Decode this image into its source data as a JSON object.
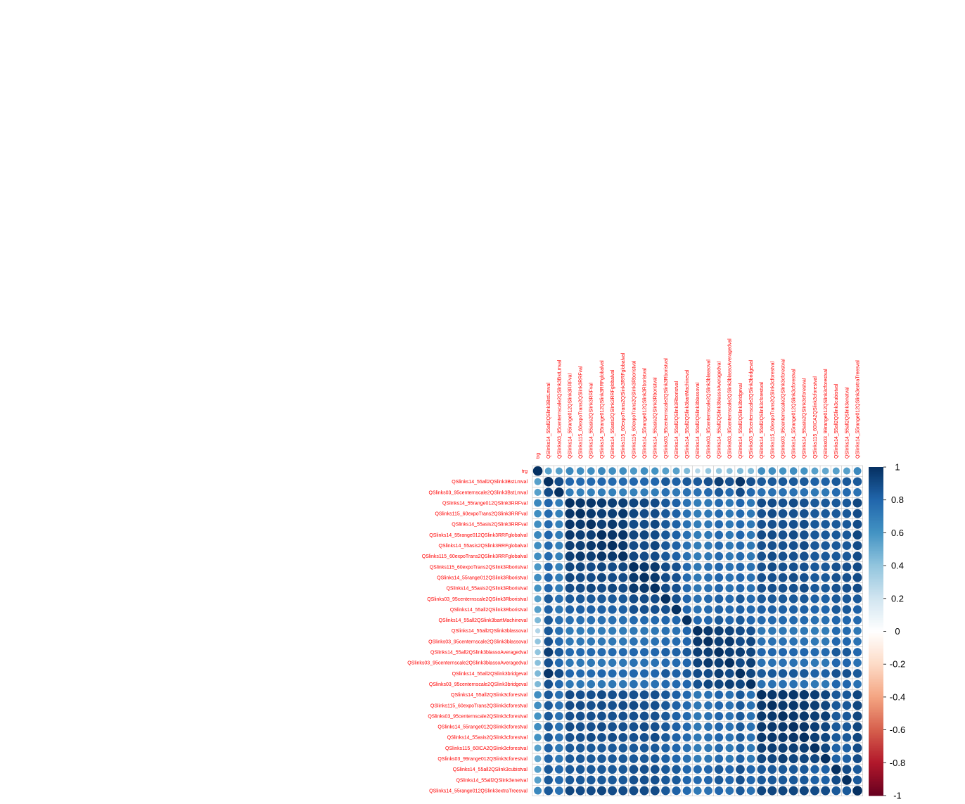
{
  "chart_data": {
    "type": "heatmap",
    "variables": [
      "trg",
      "QSlinks14_55all2QSlink3BstLmval",
      "QSlinks03_95centernscale2QSlink3BstLmval",
      "QSlinks14_55range012QSlink3RRFval",
      "QSlinks115_60expoTrans2QSlink3RRFval",
      "QSlinks14_55asis2QSlink3RRFval",
      "QSlinks14_55range012QSlink3RRFglobalval",
      "QSlinks14_55asis2QSlink3RRFglobalval",
      "QSlinks115_60expoTrans2QSlink3RRFglobalval",
      "QSlinks115_60expoTrans2QSlink3Rboristval",
      "QSlinks14_55range012QSlink3Rboristval",
      "QSlinks14_55asis2QSlink3Rboristval",
      "QSlinks03_95centernscale2QSlink3Rboristval",
      "QSlinks14_55all2QSlink3Rboristval",
      "QSlinks14_55all2QSlink3bartMachineval",
      "QSlinks14_55all2QSlink3blassoval",
      "QSlinks03_95centernscale2QSlink3blassoval",
      "QSlinks14_55all2QSlink3blassoAveragedval",
      "QSlinks03_95centernscale2QSlink3blassoAveragedval",
      "QSlinks14_55all2QSlink3bridgeval",
      "QSlinks03_95centernscale2QSlink3bridgeval",
      "QSlinks14_55all2QSlink3cforestval",
      "QSlinks115_60expoTrans2QSlink3cforestval",
      "QSlinks03_95centernscale2QSlink3cforestval",
      "QSlinks14_55range012QSlink3cforestval",
      "QSlinks14_55asis2QSlink3cforestval",
      "QSlinks115_60ICA2QSlink3cforestval",
      "QSlinks03_99range012QSlink3cforestval",
      "QSlinks14_55all2QSlink3cubistval",
      "QSlinks14_55all2QSlink3enetval",
      "QSlinks14_55range012QSlink3extraTreesval"
    ],
    "groups": [
      0,
      1,
      1,
      2,
      2,
      2,
      2,
      2,
      2,
      2,
      2,
      2,
      1,
      1,
      1,
      3,
      3,
      3,
      3,
      3,
      3,
      4,
      4,
      4,
      4,
      4,
      4,
      4,
      1,
      1,
      4
    ],
    "values": [
      [
        1.0,
        0.55,
        0.55,
        0.65,
        0.62,
        0.62,
        0.65,
        0.62,
        0.62,
        0.58,
        0.62,
        0.6,
        0.55,
        0.55,
        0.45,
        0.3,
        0.4,
        0.4,
        0.42,
        0.45,
        0.45,
        0.62,
        0.62,
        0.6,
        0.62,
        0.6,
        0.55,
        0.52,
        0.55,
        0.55,
        0.65
      ],
      [
        0.55,
        1.0,
        0.9,
        0.8,
        0.78,
        0.78,
        0.8,
        0.78,
        0.78,
        0.8,
        0.8,
        0.8,
        0.85,
        0.82,
        0.85,
        0.85,
        0.88,
        0.95,
        0.88,
        0.98,
        0.88,
        0.85,
        0.85,
        0.85,
        0.85,
        0.85,
        0.82,
        0.82,
        0.85,
        0.85,
        0.85
      ],
      [
        0.55,
        0.9,
        1.0,
        0.7,
        0.68,
        0.68,
        0.7,
        0.68,
        0.68,
        0.68,
        0.7,
        0.7,
        0.75,
        0.72,
        0.75,
        0.75,
        0.78,
        0.85,
        0.78,
        0.9,
        0.78,
        0.75,
        0.75,
        0.75,
        0.75,
        0.75,
        0.72,
        0.72,
        0.78,
        0.78,
        0.75
      ],
      [
        0.65,
        0.8,
        0.7,
        1.0,
        0.98,
        0.98,
        0.97,
        0.95,
        0.95,
        0.92,
        0.92,
        0.9,
        0.85,
        0.82,
        0.75,
        0.7,
        0.72,
        0.78,
        0.72,
        0.8,
        0.72,
        0.9,
        0.9,
        0.88,
        0.9,
        0.88,
        0.85,
        0.85,
        0.85,
        0.85,
        0.92
      ],
      [
        0.62,
        0.78,
        0.68,
        0.98,
        1.0,
        0.97,
        0.95,
        0.95,
        0.97,
        0.92,
        0.9,
        0.9,
        0.85,
        0.82,
        0.75,
        0.7,
        0.72,
        0.78,
        0.72,
        0.78,
        0.72,
        0.88,
        0.9,
        0.88,
        0.88,
        0.88,
        0.85,
        0.85,
        0.85,
        0.85,
        0.9
      ],
      [
        0.62,
        0.78,
        0.68,
        0.98,
        0.97,
        1.0,
        0.95,
        0.97,
        0.95,
        0.9,
        0.9,
        0.92,
        0.85,
        0.82,
        0.75,
        0.7,
        0.72,
        0.78,
        0.72,
        0.78,
        0.72,
        0.88,
        0.88,
        0.88,
        0.88,
        0.9,
        0.85,
        0.85,
        0.85,
        0.85,
        0.9
      ],
      [
        0.65,
        0.8,
        0.7,
        0.97,
        0.95,
        0.95,
        1.0,
        0.98,
        0.98,
        0.92,
        0.92,
        0.9,
        0.85,
        0.82,
        0.75,
        0.7,
        0.72,
        0.78,
        0.72,
        0.8,
        0.72,
        0.9,
        0.9,
        0.88,
        0.9,
        0.88,
        0.85,
        0.85,
        0.85,
        0.85,
        0.92
      ],
      [
        0.62,
        0.78,
        0.68,
        0.95,
        0.95,
        0.97,
        0.98,
        1.0,
        0.97,
        0.9,
        0.9,
        0.92,
        0.85,
        0.82,
        0.75,
        0.7,
        0.72,
        0.78,
        0.72,
        0.78,
        0.72,
        0.88,
        0.88,
        0.88,
        0.88,
        0.9,
        0.85,
        0.85,
        0.85,
        0.85,
        0.9
      ],
      [
        0.62,
        0.78,
        0.68,
        0.95,
        0.97,
        0.95,
        0.98,
        0.97,
        1.0,
        0.92,
        0.9,
        0.9,
        0.85,
        0.82,
        0.75,
        0.7,
        0.72,
        0.78,
        0.72,
        0.78,
        0.72,
        0.88,
        0.9,
        0.88,
        0.88,
        0.88,
        0.85,
        0.85,
        0.85,
        0.85,
        0.9
      ],
      [
        0.58,
        0.8,
        0.68,
        0.92,
        0.92,
        0.9,
        0.92,
        0.9,
        0.92,
        1.0,
        0.97,
        0.97,
        0.9,
        0.88,
        0.78,
        0.72,
        0.75,
        0.8,
        0.75,
        0.8,
        0.75,
        0.88,
        0.9,
        0.88,
        0.88,
        0.88,
        0.85,
        0.85,
        0.88,
        0.88,
        0.9
      ],
      [
        0.62,
        0.8,
        0.7,
        0.92,
        0.9,
        0.9,
        0.92,
        0.9,
        0.9,
        0.97,
        1.0,
        0.97,
        0.9,
        0.88,
        0.78,
        0.72,
        0.75,
        0.8,
        0.75,
        0.8,
        0.75,
        0.88,
        0.88,
        0.88,
        0.9,
        0.88,
        0.85,
        0.85,
        0.88,
        0.88,
        0.9
      ],
      [
        0.6,
        0.8,
        0.7,
        0.9,
        0.9,
        0.92,
        0.9,
        0.92,
        0.9,
        0.97,
        0.97,
        1.0,
        0.9,
        0.88,
        0.78,
        0.72,
        0.75,
        0.8,
        0.75,
        0.8,
        0.75,
        0.88,
        0.88,
        0.88,
        0.88,
        0.9,
        0.85,
        0.85,
        0.88,
        0.88,
        0.9
      ],
      [
        0.55,
        0.85,
        0.75,
        0.85,
        0.85,
        0.85,
        0.85,
        0.85,
        0.85,
        0.9,
        0.9,
        0.9,
        1.0,
        0.88,
        0.8,
        0.75,
        0.78,
        0.82,
        0.78,
        0.85,
        0.78,
        0.85,
        0.85,
        0.85,
        0.85,
        0.85,
        0.82,
        0.82,
        0.85,
        0.85,
        0.85
      ],
      [
        0.55,
        0.82,
        0.72,
        0.82,
        0.82,
        0.82,
        0.82,
        0.82,
        0.82,
        0.88,
        0.88,
        0.88,
        0.88,
        1.0,
        0.8,
        0.75,
        0.78,
        0.82,
        0.78,
        0.82,
        0.78,
        0.82,
        0.82,
        0.82,
        0.82,
        0.82,
        0.8,
        0.8,
        0.85,
        0.85,
        0.82
      ],
      [
        0.45,
        0.85,
        0.75,
        0.75,
        0.75,
        0.75,
        0.75,
        0.75,
        0.75,
        0.78,
        0.78,
        0.78,
        0.8,
        0.8,
        1.0,
        0.8,
        0.8,
        0.85,
        0.8,
        0.85,
        0.8,
        0.78,
        0.78,
        0.78,
        0.78,
        0.78,
        0.75,
        0.75,
        0.8,
        0.8,
        0.78
      ],
      [
        0.3,
        0.85,
        0.75,
        0.7,
        0.7,
        0.7,
        0.7,
        0.7,
        0.7,
        0.72,
        0.72,
        0.72,
        0.75,
        0.75,
        0.8,
        1.0,
        0.97,
        0.95,
        0.93,
        0.9,
        0.88,
        0.72,
        0.72,
        0.72,
        0.72,
        0.72,
        0.7,
        0.7,
        0.78,
        0.78,
        0.72
      ],
      [
        0.4,
        0.88,
        0.78,
        0.72,
        0.72,
        0.72,
        0.72,
        0.72,
        0.72,
        0.75,
        0.75,
        0.75,
        0.78,
        0.78,
        0.8,
        0.97,
        1.0,
        0.95,
        0.97,
        0.9,
        0.92,
        0.75,
        0.75,
        0.75,
        0.75,
        0.75,
        0.72,
        0.72,
        0.8,
        0.8,
        0.75
      ],
      [
        0.4,
        0.95,
        0.85,
        0.78,
        0.78,
        0.78,
        0.78,
        0.78,
        0.78,
        0.8,
        0.8,
        0.8,
        0.82,
        0.82,
        0.85,
        0.95,
        0.95,
        1.0,
        0.95,
        0.95,
        0.92,
        0.8,
        0.8,
        0.8,
        0.8,
        0.8,
        0.78,
        0.78,
        0.85,
        0.85,
        0.8
      ],
      [
        0.42,
        0.88,
        0.78,
        0.72,
        0.72,
        0.72,
        0.72,
        0.72,
        0.72,
        0.75,
        0.75,
        0.75,
        0.78,
        0.78,
        0.8,
        0.93,
        0.97,
        0.95,
        1.0,
        0.9,
        0.95,
        0.75,
        0.75,
        0.75,
        0.75,
        0.75,
        0.72,
        0.72,
        0.8,
        0.8,
        0.75
      ],
      [
        0.45,
        0.98,
        0.9,
        0.8,
        0.78,
        0.78,
        0.8,
        0.78,
        0.78,
        0.8,
        0.8,
        0.8,
        0.85,
        0.82,
        0.85,
        0.9,
        0.9,
        0.95,
        0.9,
        1.0,
        0.92,
        0.85,
        0.85,
        0.85,
        0.85,
        0.85,
        0.82,
        0.82,
        0.88,
        0.88,
        0.85
      ],
      [
        0.45,
        0.88,
        0.78,
        0.72,
        0.72,
        0.72,
        0.72,
        0.72,
        0.72,
        0.75,
        0.75,
        0.75,
        0.78,
        0.78,
        0.8,
        0.88,
        0.92,
        0.92,
        0.95,
        0.92,
        1.0,
        0.75,
        0.75,
        0.75,
        0.75,
        0.75,
        0.72,
        0.72,
        0.8,
        0.8,
        0.75
      ],
      [
        0.62,
        0.85,
        0.75,
        0.9,
        0.88,
        0.88,
        0.9,
        0.88,
        0.88,
        0.88,
        0.88,
        0.88,
        0.85,
        0.82,
        0.78,
        0.72,
        0.75,
        0.8,
        0.75,
        0.85,
        0.75,
        1.0,
        0.97,
        0.97,
        0.97,
        0.97,
        0.95,
        0.92,
        0.85,
        0.85,
        0.92
      ],
      [
        0.62,
        0.85,
        0.75,
        0.9,
        0.9,
        0.88,
        0.9,
        0.88,
        0.9,
        0.9,
        0.88,
        0.88,
        0.85,
        0.82,
        0.78,
        0.72,
        0.75,
        0.8,
        0.75,
        0.85,
        0.75,
        0.97,
        1.0,
        0.97,
        0.97,
        0.97,
        0.95,
        0.92,
        0.85,
        0.85,
        0.92
      ],
      [
        0.6,
        0.85,
        0.75,
        0.88,
        0.88,
        0.88,
        0.88,
        0.88,
        0.88,
        0.88,
        0.88,
        0.88,
        0.85,
        0.82,
        0.78,
        0.72,
        0.75,
        0.8,
        0.75,
        0.85,
        0.75,
        0.97,
        0.97,
        1.0,
        0.97,
        0.97,
        0.95,
        0.95,
        0.85,
        0.85,
        0.92
      ],
      [
        0.62,
        0.85,
        0.75,
        0.9,
        0.88,
        0.88,
        0.9,
        0.88,
        0.88,
        0.88,
        0.9,
        0.88,
        0.85,
        0.82,
        0.78,
        0.72,
        0.75,
        0.8,
        0.75,
        0.85,
        0.75,
        0.97,
        0.97,
        0.97,
        1.0,
        0.98,
        0.95,
        0.92,
        0.85,
        0.85,
        0.92
      ],
      [
        0.6,
        0.85,
        0.75,
        0.88,
        0.88,
        0.9,
        0.88,
        0.9,
        0.88,
        0.88,
        0.88,
        0.9,
        0.85,
        0.82,
        0.78,
        0.72,
        0.75,
        0.8,
        0.75,
        0.85,
        0.75,
        0.97,
        0.97,
        0.97,
        0.98,
        1.0,
        0.95,
        0.92,
        0.85,
        0.85,
        0.92
      ],
      [
        0.55,
        0.82,
        0.72,
        0.85,
        0.85,
        0.85,
        0.85,
        0.85,
        0.85,
        0.85,
        0.85,
        0.85,
        0.82,
        0.8,
        0.75,
        0.7,
        0.72,
        0.78,
        0.72,
        0.82,
        0.72,
        0.95,
        0.95,
        0.95,
        0.95,
        0.95,
        1.0,
        0.92,
        0.82,
        0.82,
        0.9
      ],
      [
        0.52,
        0.82,
        0.72,
        0.85,
        0.85,
        0.85,
        0.85,
        0.85,
        0.85,
        0.85,
        0.85,
        0.85,
        0.82,
        0.8,
        0.75,
        0.7,
        0.72,
        0.78,
        0.72,
        0.82,
        0.72,
        0.92,
        0.92,
        0.95,
        0.92,
        0.92,
        0.92,
        1.0,
        0.82,
        0.82,
        0.9
      ],
      [
        0.55,
        0.85,
        0.78,
        0.85,
        0.85,
        0.85,
        0.85,
        0.85,
        0.85,
        0.88,
        0.88,
        0.88,
        0.85,
        0.85,
        0.8,
        0.78,
        0.8,
        0.85,
        0.8,
        0.88,
        0.8,
        0.85,
        0.85,
        0.85,
        0.85,
        0.85,
        0.82,
        0.82,
        1.0,
        0.9,
        0.85
      ],
      [
        0.55,
        0.85,
        0.78,
        0.85,
        0.85,
        0.85,
        0.85,
        0.85,
        0.85,
        0.88,
        0.88,
        0.88,
        0.85,
        0.85,
        0.8,
        0.78,
        0.8,
        0.85,
        0.8,
        0.88,
        0.8,
        0.85,
        0.85,
        0.85,
        0.85,
        0.85,
        0.82,
        0.82,
        0.9,
        1.0,
        0.85
      ],
      [
        0.65,
        0.85,
        0.75,
        0.92,
        0.9,
        0.9,
        0.92,
        0.9,
        0.9,
        0.9,
        0.9,
        0.9,
        0.85,
        0.82,
        0.78,
        0.72,
        0.75,
        0.8,
        0.75,
        0.85,
        0.75,
        0.92,
        0.92,
        0.92,
        0.92,
        0.92,
        0.9,
        0.9,
        0.85,
        0.85,
        1.0
      ]
    ],
    "colorbar": {
      "ticks": [
        "1",
        "0.8",
        "0.6",
        "0.4",
        "0.2",
        "0",
        "-0.2",
        "-0.4",
        "-0.6",
        "-0.8",
        "-1"
      ],
      "range": [
        -1,
        1
      ]
    },
    "label_color": "#ff0000",
    "grid_color": "#bebebe",
    "colors": [
      "#67001f",
      "#b2182b",
      "#d6604d",
      "#f4a582",
      "#fddbc7",
      "#ffffff",
      "#d1e5f0",
      "#92c5de",
      "#4393c3",
      "#2166ac",
      "#053061"
    ],
    "legend_position": "right",
    "grid": true
  }
}
